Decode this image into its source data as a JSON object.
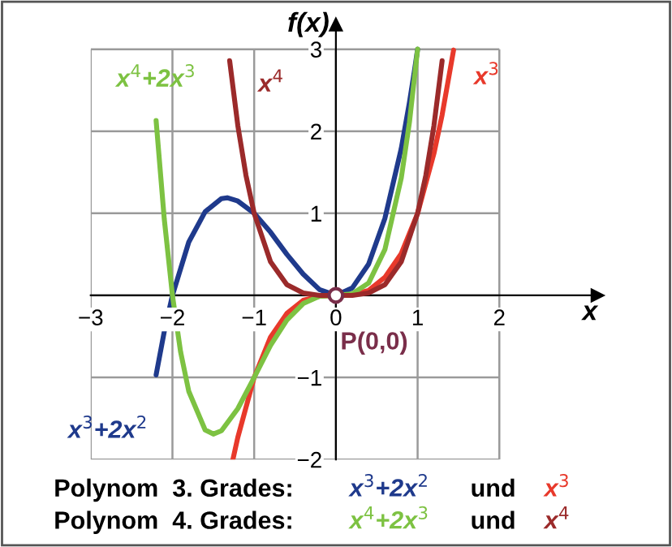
{
  "chart_data": {
    "type": "line",
    "xlabel": "x",
    "ylabel": "f(x)",
    "xlim": [
      -3,
      3.2
    ],
    "ylim": [
      -2,
      3.3
    ],
    "xticks": [
      {
        "value": -3,
        "label": "−3"
      },
      {
        "value": -2,
        "label": "−2"
      },
      {
        "value": -1,
        "label": "−1"
      },
      0,
      1,
      2
    ],
    "yticks": [
      {
        "value": -2,
        "label": "−2"
      },
      {
        "value": -1,
        "label": "−1"
      },
      {
        "value": 0,
        "label": null
      },
      1,
      2,
      3
    ],
    "grid": true,
    "series": [
      {
        "name": "x$^{3}$+2x$^{2}$",
        "color": "#1f3a8c",
        "x": [
          -2.2,
          -2.1,
          -2.0,
          -1.8,
          -1.6,
          -1.4,
          -1.33,
          -1.2,
          -1.0,
          -0.8,
          -0.6,
          -0.4,
          -0.2,
          0,
          0.2,
          0.4,
          0.6,
          0.8,
          0.9,
          0.96,
          1.0
        ],
        "values": [
          -0.97,
          -0.44,
          0,
          0.65,
          1.02,
          1.18,
          1.19,
          1.15,
          1.0,
          0.77,
          0.5,
          0.26,
          0.07,
          0,
          0.09,
          0.38,
          0.94,
          1.79,
          2.35,
          2.73,
          3.0
        ]
      },
      {
        "name": "x$^{3}$",
        "color": "#e8392b",
        "x": [
          -1.26,
          -1.2,
          -1.0,
          -0.8,
          -0.6,
          -0.4,
          -0.2,
          0,
          0.2,
          0.4,
          0.6,
          0.8,
          1.0,
          1.2,
          1.3,
          1.44
        ],
        "values": [
          -2.0,
          -1.73,
          -1.0,
          -0.51,
          -0.22,
          -0.06,
          -0.01,
          0,
          0.01,
          0.06,
          0.22,
          0.51,
          1.0,
          1.73,
          2.2,
          2.99
        ]
      },
      {
        "name": "x$^{4}$+2x$^{3}$",
        "color": "#7dc242",
        "x": [
          -2.2,
          -2.1,
          -2.0,
          -1.9,
          -1.8,
          -1.6,
          -1.5,
          -1.4,
          -1.2,
          -1.0,
          -0.8,
          -0.6,
          -0.4,
          -0.2,
          0,
          0.2,
          0.4,
          0.6,
          0.8,
          0.9,
          1.0
        ],
        "values": [
          2.13,
          0.93,
          0,
          -0.69,
          -1.17,
          -1.64,
          -1.69,
          -1.65,
          -1.38,
          -1.0,
          -0.61,
          -0.3,
          -0.1,
          -0.01,
          0,
          0.02,
          0.15,
          0.56,
          1.43,
          2.11,
          3.0
        ]
      },
      {
        "name": "x$^{4}$",
        "color": "#9b2a2a",
        "x": [
          -1.3,
          -1.2,
          -1.1,
          -1.0,
          -0.8,
          -0.6,
          -0.4,
          -0.2,
          0,
          0.2,
          0.4,
          0.6,
          0.8,
          1.0,
          1.1,
          1.2,
          1.3
        ],
        "values": [
          2.86,
          2.07,
          1.46,
          1.0,
          0.41,
          0.13,
          0.03,
          0,
          0,
          0,
          0.03,
          0.13,
          0.41,
          1.0,
          1.46,
          2.07,
          2.86
        ]
      }
    ],
    "annotations": [
      "Polynom  3. Grades:",
      "und",
      "Polynom  4. Grades:",
      "und",
      {
        "text": "P(0,0)",
        "x": 0,
        "y": 0
      }
    ]
  }
}
